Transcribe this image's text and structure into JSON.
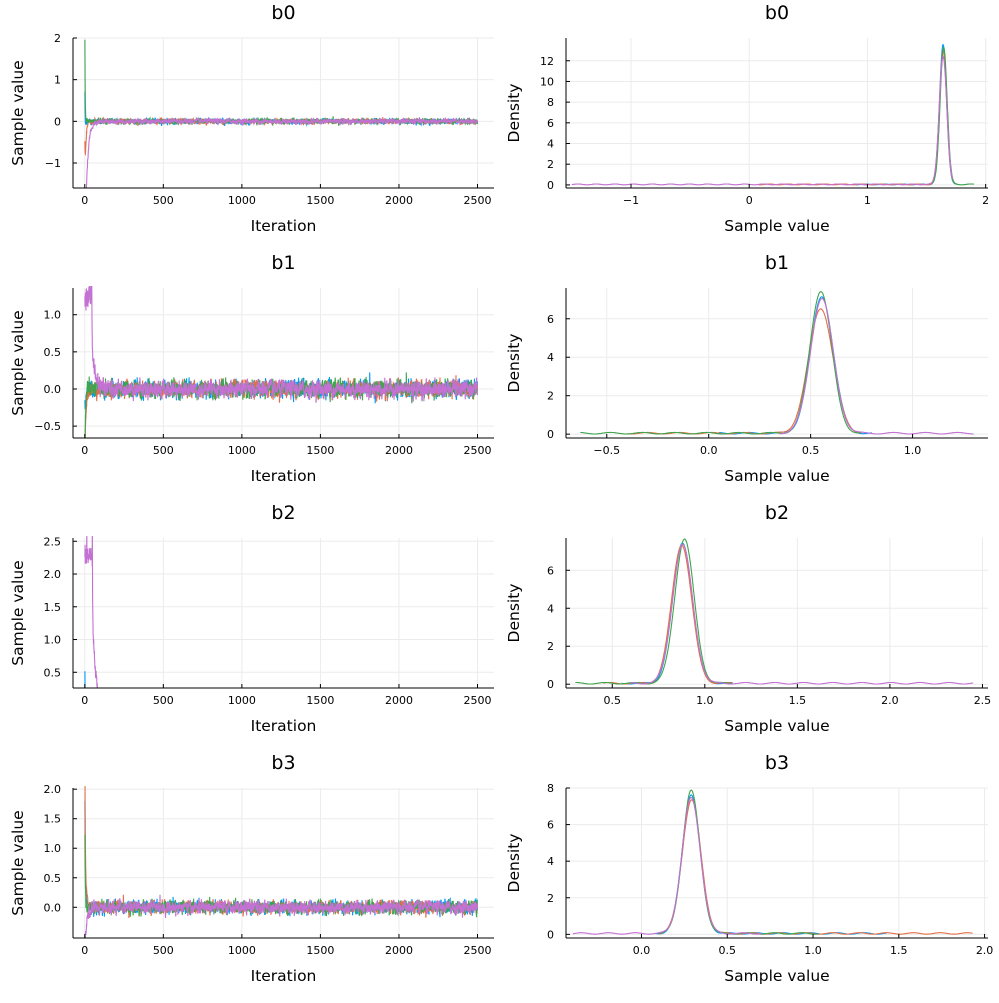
{
  "colors": [
    "#009AFA",
    "#E36F47",
    "#3EA44E",
    "#C371D2"
  ],
  "chart_data": [
    {
      "type": "line",
      "kind": "trace",
      "title": "b0",
      "xlabel": "Iteration",
      "ylabel": "Sample value",
      "xlim": [
        -75,
        2605
      ],
      "ylim": [
        -1.6,
        2.0
      ],
      "xticks": [
        0,
        500,
        1000,
        1500,
        2000,
        2500
      ],
      "xticklabels": [
        "0",
        "500",
        "1000",
        "1500",
        "2000",
        "2500"
      ],
      "yticks": [
        -1,
        0,
        1,
        2
      ],
      "yticklabels": [
        "−1",
        "0",
        "1",
        "2"
      ],
      "n_iter": 2500,
      "mean": 1.64,
      "sd": 0.03,
      "chains": [
        {
          "init": 0.9,
          "burn": 10
        },
        {
          "init": 0.08,
          "burn": 20
        },
        {
          "init": 1.9,
          "burn": 15
        },
        {
          "init": -1.55,
          "burn": 45
        }
      ]
    },
    {
      "type": "line",
      "kind": "density",
      "title": "b0",
      "xlabel": "Sample value",
      "ylabel": "Density",
      "xlim": [
        -1.55,
        2.02
      ],
      "ylim": [
        -0.3,
        14.2
      ],
      "xticks": [
        -1,
        0,
        1,
        2
      ],
      "xticklabels": [
        "−1",
        "0",
        "1",
        "2"
      ],
      "yticks": [
        0,
        2,
        4,
        6,
        8,
        10,
        12
      ],
      "yticklabels": [
        "0",
        "2",
        "4",
        "6",
        "8",
        "10",
        "12"
      ],
      "chains": [
        {
          "mean": 1.64,
          "sd": 0.03,
          "peak": 13.5,
          "range": [
            0.9,
            1.75
          ]
        },
        {
          "mean": 1.64,
          "sd": 0.031,
          "peak": 12.9,
          "range": [
            0.08,
            1.76
          ]
        },
        {
          "mean": 1.645,
          "sd": 0.03,
          "peak": 13.3,
          "range": [
            1.55,
            1.9
          ]
        },
        {
          "mean": 1.64,
          "sd": 0.032,
          "peak": 12.4,
          "range": [
            -1.5,
            1.72
          ]
        }
      ]
    },
    {
      "type": "line",
      "kind": "trace",
      "title": "b1",
      "xlabel": "Iteration",
      "ylabel": "Sample value",
      "xlim": [
        -75,
        2605
      ],
      "ylim": [
        -0.66,
        1.36
      ],
      "xticks": [
        0,
        500,
        1000,
        1500,
        2000,
        2500
      ],
      "xticklabels": [
        "0",
        "500",
        "1000",
        "1500",
        "2000",
        "2500"
      ],
      "yticks": [
        -0.5,
        0,
        0.5,
        1
      ],
      "yticklabels": [
        "−0.5",
        "0.0",
        "0.5",
        "1.0"
      ],
      "n_iter": 2500,
      "mean": 0.55,
      "sd": 0.055,
      "chains": [
        {
          "init": 0.05,
          "burn": 15
        },
        {
          "init": -0.4,
          "burn": 20
        },
        {
          "init": -0.6,
          "burn": 12
        },
        {
          "init": 1.25,
          "burn": 55,
          "hold": true
        }
      ]
    },
    {
      "type": "line",
      "kind": "density",
      "title": "b1",
      "xlabel": "Sample value",
      "ylabel": "Density",
      "xlim": [
        -0.7,
        1.37
      ],
      "ylim": [
        -0.2,
        7.6
      ],
      "xticks": [
        -0.5,
        0,
        0.5,
        1
      ],
      "xticklabels": [
        "−0.5",
        "0.0",
        "0.5",
        "1.0"
      ],
      "yticks": [
        0,
        2,
        4,
        6
      ],
      "yticklabels": [
        "0",
        "2",
        "4",
        "6"
      ],
      "chains": [
        {
          "mean": 0.555,
          "sd": 0.056,
          "peak": 7.1,
          "range": [
            0.05,
            0.8
          ]
        },
        {
          "mean": 0.55,
          "sd": 0.06,
          "peak": 6.5,
          "range": [
            -0.4,
            0.75
          ]
        },
        {
          "mean": 0.55,
          "sd": 0.054,
          "peak": 7.4,
          "range": [
            -0.63,
            0.75
          ]
        },
        {
          "mean": 0.555,
          "sd": 0.056,
          "peak": 7.0,
          "range": [
            0.35,
            1.3
          ]
        }
      ]
    },
    {
      "type": "line",
      "kind": "trace",
      "title": "b2",
      "xlabel": "Iteration",
      "ylabel": "Sample value",
      "xlim": [
        -75,
        2605
      ],
      "ylim": [
        0.26,
        2.55
      ],
      "xticks": [
        0,
        500,
        1000,
        1500,
        2000,
        2500
      ],
      "xticklabels": [
        "0",
        "500",
        "1000",
        "1500",
        "2000",
        "2500"
      ],
      "yticks": [
        0.5,
        1,
        1.5,
        2,
        2.5
      ],
      "yticklabels": [
        "0.5",
        "1.0",
        "1.5",
        "2.0",
        "2.5"
      ],
      "n_iter": 2500,
      "mean": 0.88,
      "sd": 0.053,
      "chains": [
        {
          "init": 0.6,
          "burn": 12
        },
        {
          "init": 0.45,
          "burn": 18
        },
        {
          "init": 0.3,
          "burn": 15
        },
        {
          "init": 2.3,
          "burn": 60,
          "hold": true
        }
      ]
    },
    {
      "type": "line",
      "kind": "density",
      "title": "b2",
      "xlabel": "Sample value",
      "ylabel": "Density",
      "xlim": [
        0.25,
        2.53
      ],
      "ylim": [
        -0.2,
        7.7
      ],
      "xticks": [
        0.5,
        1,
        1.5,
        2,
        2.5
      ],
      "xticklabels": [
        "0.5",
        "1.0",
        "1.5",
        "2.0",
        "2.5"
      ],
      "yticks": [
        0,
        2,
        4,
        6
      ],
      "yticklabels": [
        "0",
        "2",
        "4",
        "6"
      ],
      "chains": [
        {
          "mean": 0.88,
          "sd": 0.053,
          "peak": 7.4,
          "range": [
            0.55,
            1.15
          ]
        },
        {
          "mean": 0.875,
          "sd": 0.054,
          "peak": 7.3,
          "range": [
            0.45,
            1.15
          ]
        },
        {
          "mean": 0.89,
          "sd": 0.052,
          "peak": 7.6,
          "range": [
            0.3,
            1.15
          ]
        },
        {
          "mean": 0.88,
          "sd": 0.054,
          "peak": 7.3,
          "range": [
            0.6,
            2.45
          ]
        }
      ]
    },
    {
      "type": "line",
      "kind": "trace",
      "title": "b3",
      "xlabel": "Iteration",
      "ylabel": "Sample value",
      "xlim": [
        -75,
        2605
      ],
      "ylim": [
        -0.52,
        2.02
      ],
      "xticks": [
        0,
        500,
        1000,
        1500,
        2000,
        2500
      ],
      "xticklabels": [
        "0",
        "500",
        "1000",
        "1500",
        "2000",
        "2500"
      ],
      "yticks": [
        0,
        0.5,
        1,
        1.5,
        2
      ],
      "yticklabels": [
        "0.0",
        "0.5",
        "1.0",
        "1.5",
        "2.0"
      ],
      "n_iter": 2500,
      "mean": 0.29,
      "sd": 0.052,
      "chains": [
        {
          "init": 1.45,
          "burn": 15
        },
        {
          "init": 1.95,
          "burn": 20
        },
        {
          "init": 1.0,
          "burn": 12
        },
        {
          "init": -0.35,
          "burn": 45
        }
      ]
    },
    {
      "type": "line",
      "kind": "density",
      "title": "b3",
      "xlabel": "Sample value",
      "ylabel": "Density",
      "xlim": [
        -0.44,
        2.02
      ],
      "ylim": [
        -0.2,
        8.0
      ],
      "xticks": [
        0,
        0.5,
        1,
        1.5,
        2
      ],
      "xticklabels": [
        "0.0",
        "0.5",
        "1.0",
        "1.5",
        "2.0"
      ],
      "yticks": [
        0,
        2,
        4,
        6,
        8
      ],
      "yticklabels": [
        "0",
        "2",
        "4",
        "6",
        "8"
      ],
      "chains": [
        {
          "mean": 0.29,
          "sd": 0.052,
          "peak": 7.6,
          "range": [
            0.08,
            1.43
          ]
        },
        {
          "mean": 0.292,
          "sd": 0.054,
          "peak": 7.3,
          "range": [
            0.1,
            1.93
          ]
        },
        {
          "mean": 0.29,
          "sd": 0.051,
          "peak": 7.8,
          "range": [
            0.1,
            1.03
          ]
        },
        {
          "mean": 0.29,
          "sd": 0.053,
          "peak": 7.4,
          "range": [
            -0.4,
            0.7
          ]
        }
      ]
    }
  ]
}
